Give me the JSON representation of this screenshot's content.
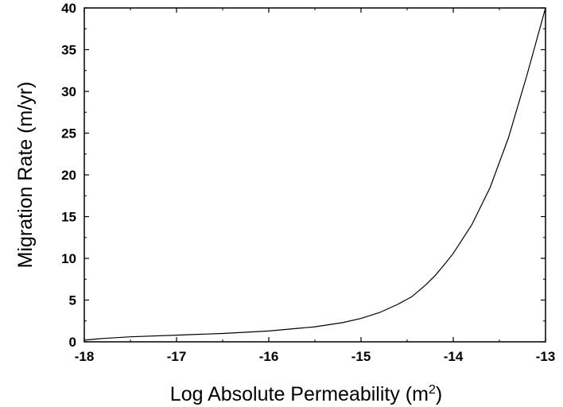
{
  "chart_data": {
    "type": "line",
    "title": "",
    "xlabel": "Log Absolute Permeability (m",
    "xlabel_sup": "2",
    "xlabel_end": ")",
    "ylabel": "Migration Rate (m/yr)",
    "xlim": [
      -18,
      -13
    ],
    "ylim": [
      0,
      40
    ],
    "xticks": [
      -18,
      -17,
      -16,
      -15,
      -14,
      -13
    ],
    "yticks": [
      0,
      5,
      10,
      15,
      20,
      25,
      30,
      35,
      40
    ],
    "grid": false,
    "series": [
      {
        "x": [
          -18,
          -17.8,
          -17.5,
          -17,
          -16.5,
          -16,
          -15.5,
          -15.2,
          -15,
          -14.8,
          -14.6,
          -14.45,
          -14.3,
          -14.2,
          -14.1,
          -14,
          -13.8,
          -13.6,
          -13.4,
          -13.2,
          -13
        ],
        "y": [
          0.2,
          0.4,
          0.6,
          0.8,
          1.0,
          1.3,
          1.8,
          2.3,
          2.8,
          3.5,
          4.5,
          5.4,
          6.8,
          7.9,
          9.2,
          10.6,
          14.0,
          18.5,
          24.5,
          32.0,
          40.0
        ]
      }
    ]
  }
}
